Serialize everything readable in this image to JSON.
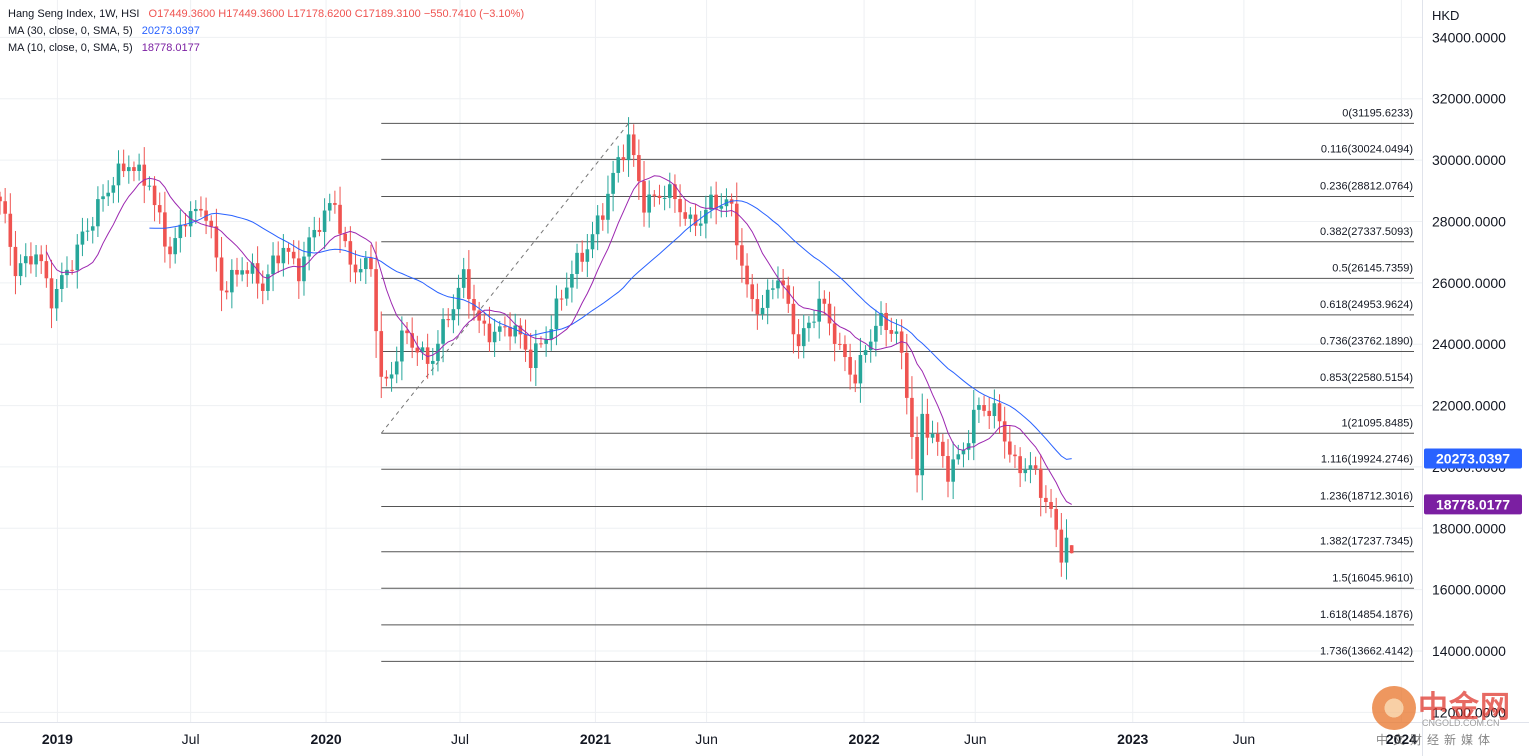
{
  "legend": {
    "series_name": "Hang Seng Index, 1W, HSI",
    "open": "O17449.3600",
    "high": "H17449.3600",
    "low": "L17178.6200",
    "close": "C17189.3100",
    "change": "−550.7410 (−3.10%)",
    "ma30_label": "MA (30, close, 0, SMA, 5)",
    "ma30_value": "20273.0397",
    "ma10_label": "MA (10, close, 0, SMA, 5)",
    "ma10_value": "18778.0177"
  },
  "currency": "HKD",
  "colors": {
    "up": "#26a69a",
    "down": "#ef5350",
    "ma30": "#2962ff",
    "ma10": "#9c27b0",
    "fib_line": "#555555",
    "ma30_badge": "#2962ff",
    "ma10_badge": "#7b1fa2"
  },
  "watermark": {
    "name": "中金网",
    "url": "CNGOLD.COM.CN",
    "tagline": "中文财经新媒体"
  },
  "chart_data": {
    "type": "candlestick",
    "interval": "1W",
    "symbol": "HSI",
    "y_unit": "HKD",
    "ylim": [
      12000,
      35000
    ],
    "y_ticks": [
      {
        "value": 34000,
        "label": "34000.0000"
      },
      {
        "value": 32000,
        "label": "32000.0000"
      },
      {
        "value": 30000,
        "label": "30000.0000"
      },
      {
        "value": 28000,
        "label": "28000.0000"
      },
      {
        "value": 26000,
        "label": "26000.0000"
      },
      {
        "value": 24000,
        "label": "24000.0000"
      },
      {
        "value": 22000,
        "label": "22000.0000"
      },
      {
        "value": 20000,
        "label": "20000.0000"
      },
      {
        "value": 18000,
        "label": "18000.0000"
      },
      {
        "value": 16000,
        "label": "16000.0000"
      },
      {
        "value": 14000,
        "label": "14000.0000"
      },
      {
        "value": 12000,
        "label": "12000.0000"
      }
    ],
    "x_range": [
      "2018-10-15",
      "2024-01-29"
    ],
    "x_ticks": [
      {
        "date": "2019-01-01",
        "label": "2019",
        "bold": true
      },
      {
        "date": "2019-07-01",
        "label": "Jul",
        "bold": false
      },
      {
        "date": "2020-01-01",
        "label": "2020",
        "bold": true
      },
      {
        "date": "2020-07-01",
        "label": "Jul",
        "bold": false
      },
      {
        "date": "2021-01-01",
        "label": "2021",
        "bold": true
      },
      {
        "date": "2021-06-01",
        "label": "Jun",
        "bold": false
      },
      {
        "date": "2022-01-01",
        "label": "2022",
        "bold": true
      },
      {
        "date": "2022-06-01",
        "label": "Jun",
        "bold": false
      },
      {
        "date": "2023-01-01",
        "label": "2023",
        "bold": true
      },
      {
        "date": "2023-06-01",
        "label": "Jun",
        "bold": false
      },
      {
        "date": "2024-01-01",
        "label": "2024",
        "bold": true
      }
    ],
    "price_anchors": [
      [
        "2018-10-15",
        28500
      ],
      [
        "2018-11-05",
        26400
      ],
      [
        "2018-12-03",
        27200
      ],
      [
        "2018-12-24",
        25300
      ],
      [
        "2019-01-07",
        25900
      ],
      [
        "2019-02-04",
        27700
      ],
      [
        "2019-03-04",
        28600
      ],
      [
        "2019-04-08",
        30100
      ],
      [
        "2019-05-06",
        29200
      ],
      [
        "2019-05-13",
        28300
      ],
      [
        "2019-06-03",
        26900
      ],
      [
        "2019-06-24",
        28400
      ],
      [
        "2019-07-22",
        28200
      ],
      [
        "2019-08-12",
        25800
      ],
      [
        "2019-09-09",
        26700
      ],
      [
        "2019-10-07",
        25700
      ],
      [
        "2019-11-04",
        27400
      ],
      [
        "2019-11-25",
        26400
      ],
      [
        "2019-12-30",
        28200
      ],
      [
        "2020-01-13",
        28800
      ],
      [
        "2020-02-03",
        26500
      ],
      [
        "2020-03-02",
        26300
      ],
      [
        "2020-03-16",
        23000
      ],
      [
        "2020-03-23",
        22800
      ],
      [
        "2020-04-13",
        24300
      ],
      [
        "2020-05-18",
        23300
      ],
      [
        "2020-06-08",
        24700
      ],
      [
        "2020-07-06",
        26000
      ],
      [
        "2020-07-27",
        24600
      ],
      [
        "2020-09-07",
        24500
      ],
      [
        "2020-10-05",
        23500
      ],
      [
        "2020-11-02",
        24800
      ],
      [
        "2020-12-07",
        26500
      ],
      [
        "2021-01-11",
        28500
      ],
      [
        "2021-02-15",
        30600
      ],
      [
        "2021-03-08",
        28800
      ],
      [
        "2021-04-05",
        28900
      ],
      [
        "2021-05-10",
        28000
      ],
      [
        "2021-06-07",
        28600
      ],
      [
        "2021-07-05",
        28300
      ],
      [
        "2021-07-26",
        25900
      ],
      [
        "2021-08-16",
        25100
      ],
      [
        "2021-09-06",
        26100
      ],
      [
        "2021-10-04",
        24200
      ],
      [
        "2021-11-01",
        25300
      ],
      [
        "2021-11-29",
        23800
      ],
      [
        "2021-12-20",
        23100
      ],
      [
        "2022-01-17",
        24500
      ],
      [
        "2022-02-14",
        24500
      ],
      [
        "2022-02-28",
        22700
      ],
      [
        "2022-03-14",
        19600
      ],
      [
        "2022-03-21",
        21400
      ],
      [
        "2022-04-25",
        20000
      ],
      [
        "2022-05-16",
        20700
      ],
      [
        "2022-06-06",
        21800
      ],
      [
        "2022-07-04",
        21700
      ],
      [
        "2022-07-25",
        20100
      ],
      [
        "2022-08-15",
        19800
      ],
      [
        "2022-09-12",
        18600
      ],
      [
        "2022-09-26",
        17400
      ],
      [
        "2022-10-03",
        17700
      ],
      [
        "2022-10-10",
        17200
      ]
    ],
    "final_bar": {
      "date": "2022-10-10",
      "open": 17449.36,
      "high": 17449.36,
      "low": 17178.62,
      "close": 17189.31
    },
    "swing_low": {
      "date": "2020-03-16",
      "price": 21095.8485
    },
    "swing_high": {
      "date": "2021-02-15",
      "price": 31195.6233
    },
    "ma30_last": 20273.0397,
    "ma10_last": 18778.0177,
    "fib_start_date": "2020-03-16",
    "fib_levels": [
      {
        "ratio": "0",
        "price": 31195.6233,
        "label": "0(31195.6233)"
      },
      {
        "ratio": "0.116",
        "price": 30024.0494,
        "label": "0.116(30024.0494)"
      },
      {
        "ratio": "0.236",
        "price": 28812.0764,
        "label": "0.236(28812.0764)"
      },
      {
        "ratio": "0.382",
        "price": 27337.5093,
        "label": "0.382(27337.5093)"
      },
      {
        "ratio": "0.5",
        "price": 26145.7359,
        "label": "0.5(26145.7359)"
      },
      {
        "ratio": "0.618",
        "price": 24953.9624,
        "label": "0.618(24953.9624)"
      },
      {
        "ratio": "0.736",
        "price": 23762.189,
        "label": "0.736(23762.1890)"
      },
      {
        "ratio": "0.853",
        "price": 22580.5154,
        "label": "0.853(22580.5154)"
      },
      {
        "ratio": "1",
        "price": 21095.8485,
        "label": "1(21095.8485)"
      },
      {
        "ratio": "1.116",
        "price": 19924.2746,
        "label": "1.116(19924.2746)"
      },
      {
        "ratio": "1.236",
        "price": 18712.3016,
        "label": "1.236(18712.3016)"
      },
      {
        "ratio": "1.382",
        "price": 17237.7345,
        "label": "1.382(17237.7345)"
      },
      {
        "ratio": "1.5",
        "price": 16045.961,
        "label": "1.5(16045.9610)"
      },
      {
        "ratio": "1.618",
        "price": 14854.1876,
        "label": "1.618(14854.1876)"
      },
      {
        "ratio": "1.736",
        "price": 13662.4142,
        "label": "1.736(13662.4142)"
      }
    ],
    "badges": [
      {
        "value": "20273.0397",
        "price": 20273.0397,
        "color": "#2962ff"
      },
      {
        "value": "18778.0177",
        "price": 18778.0177,
        "color": "#7b1fa2"
      }
    ],
    "grid": true,
    "legend_position": "top-left"
  }
}
